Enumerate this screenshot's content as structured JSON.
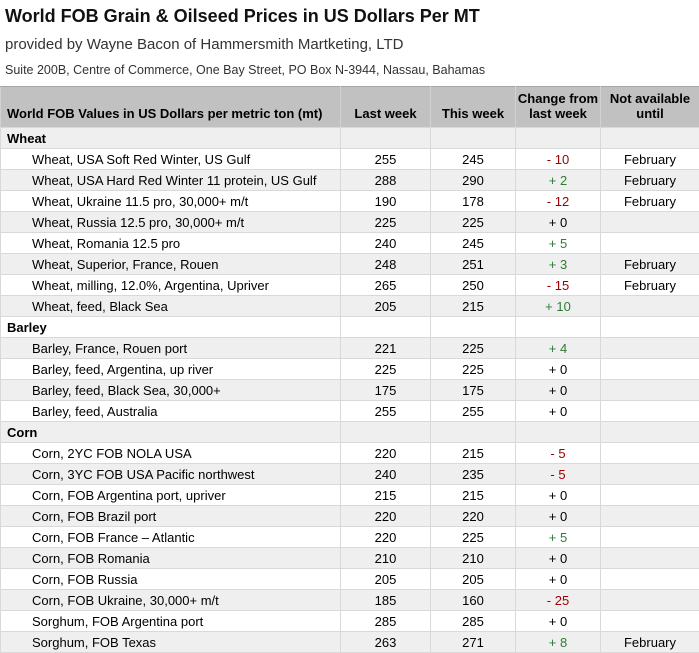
{
  "header": {
    "title": "World FOB Grain & Oilseed Prices in US Dollars Per MT",
    "subtitle": "provided by Wayne Bacon of Hammersmith Martketing, LTD",
    "address": "Suite 200B, Centre of Commerce, One Bay Street, PO Box N-3944, Nassau, Bahamas"
  },
  "colors": {
    "negative_change": "#a00000",
    "positive_change": "#2e7d32",
    "neutral_change": "#000000",
    "table_header_bg": "#c1c1c1",
    "alt_row_bg": "#efefef"
  },
  "table": {
    "columns": [
      "World FOB Values in US Dollars per metric ton (mt)",
      "Last week",
      "This week",
      "Change from last week",
      "Not available until"
    ],
    "rows": [
      {
        "type": "section",
        "label": "Wheat"
      },
      {
        "type": "item",
        "label": "Wheat, USA Soft Red Winter, US Gulf",
        "last_week": "255",
        "this_week": "245",
        "change": "- 10",
        "dir": "neg",
        "not_available_until": "February"
      },
      {
        "type": "item",
        "label": "Wheat, USA Hard Red Winter 11 protein, US Gulf",
        "last_week": "288",
        "this_week": "290",
        "change": "+ 2",
        "dir": "pos",
        "not_available_until": "February"
      },
      {
        "type": "item",
        "label": "Wheat, Ukraine 11.5 pro, 30,000+ m/t",
        "last_week": "190",
        "this_week": "178",
        "change": "- 12",
        "dir": "neg",
        "not_available_until": "February"
      },
      {
        "type": "item",
        "label": "Wheat, Russia 12.5 pro, 30,000+ m/t",
        "last_week": "225",
        "this_week": "225",
        "change": "+ 0",
        "dir": "zero",
        "not_available_until": ""
      },
      {
        "type": "item",
        "label": "Wheat, Romania 12.5 pro",
        "last_week": "240",
        "this_week": "245",
        "change": "+ 5",
        "dir": "pos",
        "not_available_until": ""
      },
      {
        "type": "item",
        "label": "Wheat, Superior, France, Rouen",
        "last_week": "248",
        "this_week": "251",
        "change": "+ 3",
        "dir": "pos",
        "not_available_until": "February"
      },
      {
        "type": "item",
        "label": "Wheat, milling, 12.0%, Argentina, Upriver",
        "last_week": "265",
        "this_week": "250",
        "change": "- 15",
        "dir": "neg",
        "not_available_until": "February"
      },
      {
        "type": "item",
        "label": "Wheat, feed, Black Sea",
        "last_week": "205",
        "this_week": "215",
        "change": "+ 10",
        "dir": "pos",
        "not_available_until": ""
      },
      {
        "type": "section",
        "label": "Barley"
      },
      {
        "type": "item",
        "label": "Barley, France, Rouen port",
        "last_week": "221",
        "this_week": "225",
        "change": "+ 4",
        "dir": "pos",
        "not_available_until": ""
      },
      {
        "type": "item",
        "label": "Barley, feed, Argentina, up river",
        "last_week": "225",
        "this_week": "225",
        "change": "+ 0",
        "dir": "zero",
        "not_available_until": ""
      },
      {
        "type": "item",
        "label": "Barley, feed, Black Sea, 30,000+",
        "last_week": "175",
        "this_week": "175",
        "change": "+ 0",
        "dir": "zero",
        "not_available_until": ""
      },
      {
        "type": "item",
        "label": "Barley, feed, Australia",
        "last_week": "255",
        "this_week": "255",
        "change": "+ 0",
        "dir": "zero",
        "not_available_until": ""
      },
      {
        "type": "section",
        "label": "Corn"
      },
      {
        "type": "item",
        "label": "Corn, 2YC FOB NOLA USA",
        "last_week": "220",
        "this_week": "215",
        "change": "- 5",
        "dir": "neg",
        "not_available_until": ""
      },
      {
        "type": "item",
        "label": "Corn, 3YC FOB USA Pacific northwest",
        "last_week": "240",
        "this_week": "235",
        "change": "- 5",
        "dir": "neg",
        "not_available_until": ""
      },
      {
        "type": "item",
        "label": "Corn, FOB Argentina port, upriver",
        "last_week": "215",
        "this_week": "215",
        "change": "+ 0",
        "dir": "zero",
        "not_available_until": ""
      },
      {
        "type": "item",
        "label": "Corn, FOB Brazil port",
        "last_week": "220",
        "this_week": "220",
        "change": "+ 0",
        "dir": "zero",
        "not_available_until": ""
      },
      {
        "type": "item",
        "label": "Corn, FOB France – Atlantic",
        "last_week": "220",
        "this_week": "225",
        "change": "+ 5",
        "dir": "pos",
        "not_available_until": ""
      },
      {
        "type": "item",
        "label": "Corn, FOB Romania",
        "last_week": "210",
        "this_week": "210",
        "change": "+ 0",
        "dir": "zero",
        "not_available_until": ""
      },
      {
        "type": "item",
        "label": "Corn, FOB Russia",
        "last_week": "205",
        "this_week": "205",
        "change": "+ 0",
        "dir": "zero",
        "not_available_until": ""
      },
      {
        "type": "item",
        "label": "Corn, FOB Ukraine, 30,000+ m/t",
        "last_week": "185",
        "this_week": "160",
        "change": "- 25",
        "dir": "neg",
        "not_available_until": ""
      },
      {
        "type": "item",
        "label": "Sorghum, FOB Argentina port",
        "last_week": "285",
        "this_week": "285",
        "change": "+ 0",
        "dir": "zero",
        "not_available_until": ""
      },
      {
        "type": "item",
        "label": "Sorghum, FOB Texas",
        "last_week": "263",
        "this_week": "271",
        "change": "+ 8",
        "dir": "pos",
        "not_available_until": "February"
      }
    ]
  }
}
